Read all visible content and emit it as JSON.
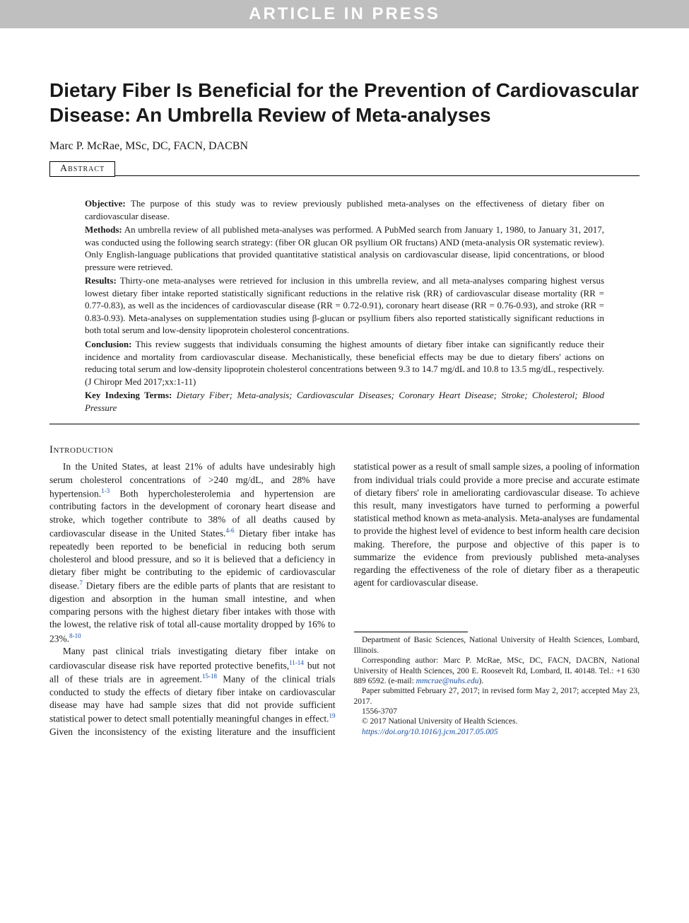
{
  "banner": "ARTICLE IN PRESS",
  "title": "Dietary Fiber Is Beneficial for the Prevention of Cardiovascular Disease: An Umbrella Review of Meta-analyses",
  "authors": "Marc P. McRae, MSc, DC, FACN, DACBN",
  "abstract_label": "Abstract",
  "abstract": {
    "objective_label": "Objective:",
    "objective": "The purpose of this study was to review previously published meta-analyses on the effectiveness of dietary fiber on cardiovascular disease.",
    "methods_label": "Methods:",
    "methods": "An umbrella review of all published meta-analyses was performed. A PubMed search from January 1, 1980, to January 31, 2017, was conducted using the following search strategy: (fiber OR glucan OR psyllium OR fructans) AND (meta-analysis OR systematic review). Only English-language publications that provided quantitative statistical analysis on cardiovascular disease, lipid concentrations, or blood pressure were retrieved.",
    "results_label": "Results:",
    "results": "Thirty-one meta-analyses were retrieved for inclusion in this umbrella review, and all meta-analyses comparing highest versus lowest dietary fiber intake reported statistically significant reductions in the relative risk (RR) of cardiovascular disease mortality (RR = 0.77-0.83), as well as the incidences of cardiovascular disease (RR = 0.72-0.91), coronary heart disease (RR = 0.76-0.93), and stroke (RR = 0.83-0.93). Meta-analyses on supplementation studies using β-glucan or psyllium fibers also reported statistically significant reductions in both total serum and low-density lipoprotein cholesterol concentrations.",
    "conclusion_label": "Conclusion:",
    "conclusion": "This review suggests that individuals consuming the highest amounts of dietary fiber intake can significantly reduce their incidence and mortality from cardiovascular disease. Mechanistically, these beneficial effects may be due to dietary fibers' actions on reducing total serum and low-density lipoprotein cholesterol concentrations between 9.3 to 14.7 mg/dL and 10.8 to 13.5 mg/dL, respectively. (J Chiropr Med 2017;xx:1-11)",
    "keywords_label": "Key Indexing Terms:",
    "keywords": "Dietary Fiber; Meta-analysis; Cardiovascular Diseases; Coronary Heart Disease; Stroke; Cholesterol; Blood Pressure"
  },
  "section": {
    "intro_head": "Introduction",
    "p1a": "In the United States, at least 21% of adults have undesirably high serum cholesterol concentrations of >240 mg/dL, and 28% have hypertension.",
    "p1a_ref": "1-3",
    "p1b": " Both hypercholesterolemia and hypertension are contributing factors in the development of coronary heart disease and stroke, which together contribute to 38% of all deaths caused by cardiovascular disease in the United States.",
    "p1b_ref": "4-6",
    "p1c": " Dietary fiber intake has repeatedly been reported to be beneficial in reducing both serum cholesterol and blood pressure, and so it is believed that a deficiency in dietary fiber might be contributing to the epidemic of cardiovascular disease.",
    "p1c_ref": "7",
    "p1d": " Dietary fibers are the edible parts of plants that are resistant to digestion and absorption in the human small intestine, and when comparing persons with the highest dietary fiber intakes with those with the lowest, the relative risk of total all-cause mortality dropped by 16% to 23%.",
    "p1d_ref": "8-10",
    "p2a": "Many past clinical trials investigating dietary fiber intake on cardiovascular disease risk have reported protective benefits,",
    "p2a_ref": "11-14",
    "p2b": " but not all of these trials are in agreement.",
    "p2b_ref": "15-18",
    "p2c": " Many of the clinical trials conducted to study the effects of dietary fiber intake on cardiovascular disease may have had sample sizes that did not provide sufficient statistical power to detect small potentially meaningful changes in effect.",
    "p2c_ref": "19",
    "p2d": " Given the inconsistency of the existing literature and the insufficient statistical power as a result of small sample sizes, a pooling of information from individual trials could provide a more precise and accurate estimate of dietary fibers' role in ameliorating cardiovascular disease. To achieve this result, many investigators have turned to performing a powerful statistical method known as meta-analysis. Meta-analyses are fundamental to provide the highest level of evidence to best inform health care decision making. Therefore, the purpose and objective of this paper is to summarize the evidence from previously published meta-analyses regarding the effectiveness of the role of dietary fiber as a therapeutic agent for cardiovascular disease."
  },
  "footnotes": {
    "affil": "Department of Basic Sciences, National University of Health Sciences, Lombard, Illinois.",
    "corr": "Corresponding author: Marc P. McRae, MSc, DC, FACN, DACBN, National University of Health Sciences, 200 E. Roosevelt Rd, Lombard, IL 40148. Tel.: +1 630 889 6592. (e-mail: ",
    "email": "mmcrae@nuhs.edu",
    "corr_end": ").",
    "dates": "Paper submitted February 27, 2017; in revised form May 2, 2017; accepted May 23, 2017.",
    "issn": "1556-3707",
    "copyright": "© 2017 National University of Health Sciences.",
    "doi": "https://doi.org/10.1016/j.jcm.2017.05.005"
  }
}
